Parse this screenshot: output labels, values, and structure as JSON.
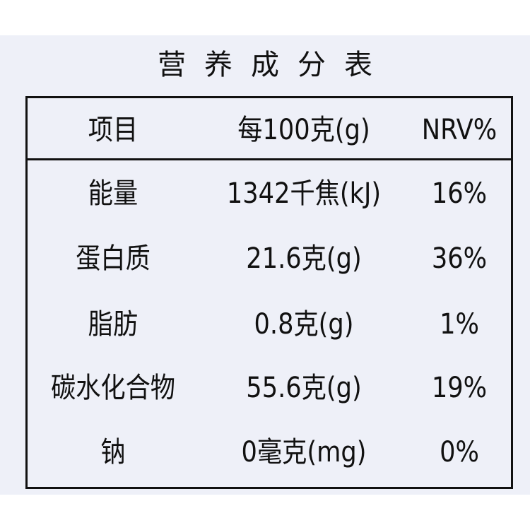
{
  "title": "营养成分表",
  "table": {
    "header": [
      "项目",
      "每100克(g)",
      "NRV%"
    ],
    "rows": [
      [
        "能量",
        "1342千焦(kJ)",
        "16%"
      ],
      [
        "蛋白质",
        "21.6克(g)",
        "36%"
      ],
      [
        "脂肪",
        "0.8克(g)",
        "1%"
      ],
      [
        "碳水化合物",
        "55.6克(g)",
        "19%"
      ],
      [
        "钠",
        "0毫克(mg)",
        "0%"
      ]
    ]
  }
}
